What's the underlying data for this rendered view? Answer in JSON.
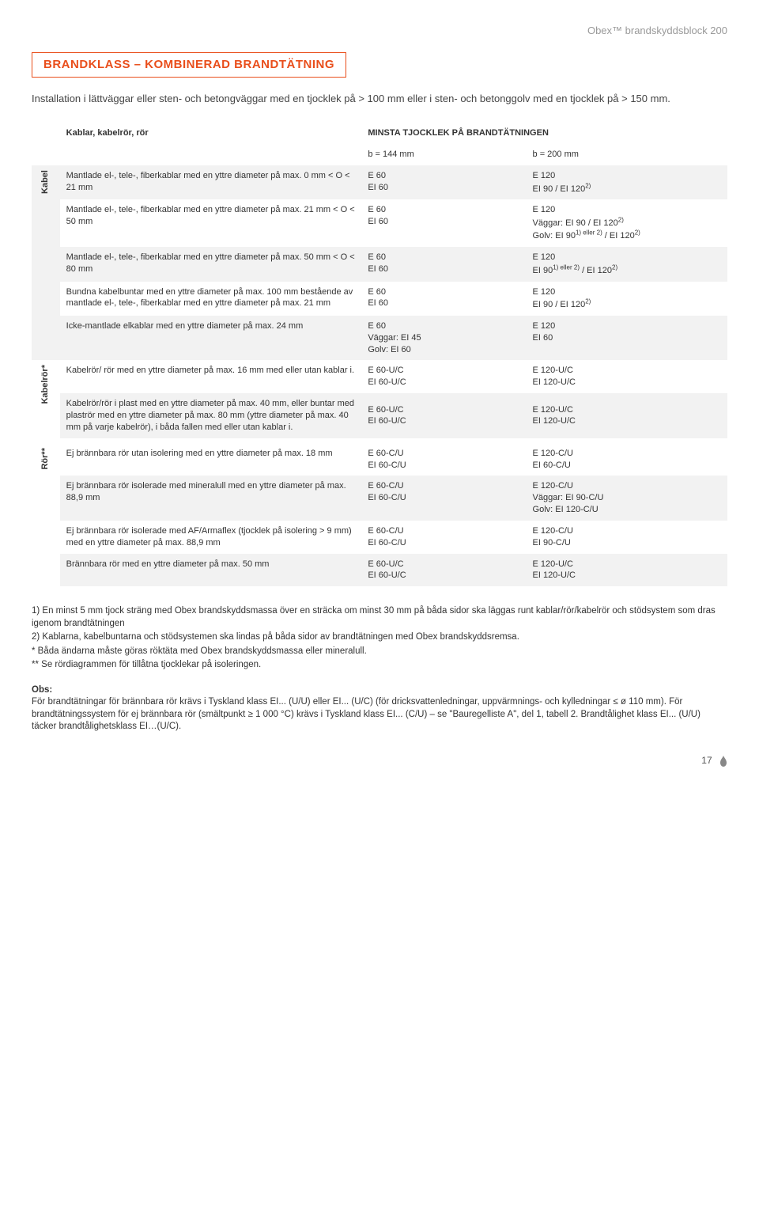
{
  "header_right": "Obex™ brandskyddsblock 200",
  "title": "BRANDKLASS – KOMBINERAD BRANDTÄTNING",
  "intro": "Installation i lättväggar eller sten- och betongväggar med en tjocklek på > 100 mm eller i sten- och betonggolv med en tjocklek på > 150 mm.",
  "table_header": {
    "col0": "Kablar, kabelrör, rör",
    "minsta": "MINSTA TJOCKLEK PÅ BRANDTÄTNINGEN",
    "b144": "b = 144 mm",
    "b200": "b = 200 mm"
  },
  "group_labels": {
    "kabel": "Kabel",
    "kabelror": "Kabelrör*",
    "ror": "Rör**"
  },
  "rows": {
    "r1": {
      "desc": "Mantlade el-, tele-, fiberkablar med en yttre diameter på max. 0 mm < O < 21 mm",
      "c1a": "E 60",
      "c1b": "EI 60",
      "c2a": "E 120",
      "c2b_html": "EI 90 / EI 120<sup>2)</sup>"
    },
    "r2": {
      "desc": "Mantlade el-, tele-, fiberkablar med en yttre diameter på max. 21 mm < O < 50 mm",
      "c1a": "E 60",
      "c1b": "EI 60",
      "c2a": "E 120",
      "c2b_html": "Väggar: EI 90 / EI 120<sup>2)</sup>",
      "c2c_html": "Golv: EI 90<sup>1) eller 2)</sup> / EI 120<sup>2)</sup>"
    },
    "r3": {
      "desc": "Mantlade el-, tele-, fiberkablar med en yttre diameter på max. 50 mm < O < 80 mm",
      "c1a": "E 60",
      "c1b": "EI 60",
      "c2a": "E 120",
      "c2b_html": "EI 90<sup>1) eller 2)</sup> / EI 120<sup>2)</sup>"
    },
    "r4": {
      "desc": "Bundna kabelbuntar med en yttre diameter på max. 100 mm bestående av mantlade el-, tele-, fiberkablar med en yttre diameter på max. 21 mm",
      "c1a": "E 60",
      "c1b": "EI 60",
      "c2a": "E 120",
      "c2b_html": "EI 90 / EI 120<sup>2)</sup>"
    },
    "r5": {
      "desc": "Icke-mantlade elkablar med en yttre diameter på max. 24 mm",
      "c1a": "E 60",
      "c1b": "Väggar: EI 45",
      "c1c": "Golv: EI 60",
      "c2a": "E 120",
      "c2b": "EI 60"
    },
    "r6": {
      "desc": "Kabelrör/ rör med en yttre diameter på max. 16 mm med eller utan kablar i.",
      "c1a": "E 60-U/C",
      "c1b": "EI 60-U/C",
      "c2a": "E 120-U/C",
      "c2b": "EI 120-U/C"
    },
    "r7": {
      "desc": "Kabelrör/rör i plast med en yttre diameter på max. 40 mm, eller buntar med plaströr med en yttre diameter på max. 80 mm (yttre diameter på max. 40 mm på varje kabelrör), i båda fallen med eller utan kablar i.",
      "c1a": "E 60-U/C",
      "c1b": "EI 60-U/C",
      "c2a": "E 120-U/C",
      "c2b": "EI 120-U/C"
    },
    "r8": {
      "desc": "Ej brännbara rör utan isolering med en yttre diameter på max. 18 mm",
      "c1a": "E 60-C/U",
      "c1b": "EI 60-C/U",
      "c2a": "E 120-C/U",
      "c2b": "EI 60-C/U"
    },
    "r9": {
      "desc": "Ej brännbara rör isolerade med mineralull med en yttre diameter på max. 88,9 mm",
      "c1a": "E 60-C/U",
      "c1b": "EI 60-C/U",
      "c2a": "E 120-C/U",
      "c2b": "Väggar: EI 90-C/U",
      "c2c": "Golv: EI 120-C/U"
    },
    "r10": {
      "desc": "Ej brännbara rör isolerade med AF/Armaflex (tjocklek på isolering > 9 mm) med en yttre diameter på max. 88,9 mm",
      "c1a": "E 60-C/U",
      "c1b": "EI 60-C/U",
      "c2a": "E 120-C/U",
      "c2b": "EI 90-C/U"
    },
    "r11": {
      "desc": "Brännbara rör med en yttre diameter på max. 50 mm",
      "c1a": "E 60-U/C",
      "c1b": "EI 60-U/C",
      "c2a": "E 120-U/C",
      "c2b": "EI 120-U/C"
    }
  },
  "footnotes": {
    "f1": "1) En minst 5 mm tjock sträng med Obex brandskyddsmassa över en sträcka om minst 30 mm på båda sidor ska läggas runt kablar/rör/kabelrör och stödsystem som dras igenom brandtätningen",
    "f2": "2) Kablarna, kabelbuntarna och stödsystemen ska lindas på båda sidor av brandtätningen med Obex brandskyddsremsa.",
    "fa": "* Båda ändarna måste göras röktäta med Obex brandskyddsmassa eller mineralull.",
    "fb": "** Se rördiagrammen för tillåtna tjocklekar på isoleringen."
  },
  "obs": {
    "head": "Obs:",
    "body": "För brandtätningar för brännbara rör krävs i Tyskland klass EI... (U/U) eller EI... (U/C) (för dricksvattenledningar, uppvärmnings- och kylledningar ≤ ø 110 mm). För brandtätningssystem för ej brännbara rör (smältpunkt ≥ 1 000 °C) krävs i Tyskland klass EI... (C/U) – se \"Bauregelliste A\", del 1, tabell 2. Brandtålighet klass EI... (U/U) täcker brandtålighetsklass EI…(U/C)."
  },
  "page_number": "17"
}
